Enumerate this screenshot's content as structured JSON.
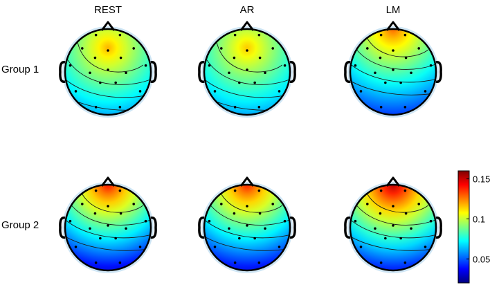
{
  "chart_data": {
    "type": "heatmap",
    "title": "",
    "columns": [
      "REST",
      "AR",
      "LM"
    ],
    "rows": [
      "Group 1",
      "Group 2"
    ],
    "colormap": "jet",
    "colorbar": {
      "range": [
        0.02,
        0.16
      ],
      "ticks": [
        0.05,
        0.1,
        0.15
      ],
      "tick_labels": [
        "0.05",
        "0.1",
        "0.15"
      ],
      "colors": [
        "#00007f",
        "#0000ff",
        "#007fff",
        "#00ffff",
        "#7fff7f",
        "#ffff00",
        "#ff7f00",
        "#ff0000",
        "#7f0000"
      ]
    },
    "panels": [
      {
        "row": "Group 1",
        "column": "REST",
        "peak_value": 0.118,
        "base_value": 0.045,
        "peak_location": "frontal-central"
      },
      {
        "row": "Group 1",
        "column": "AR",
        "peak_value": 0.115,
        "base_value": 0.045,
        "peak_location": "frontal-central"
      },
      {
        "row": "Group 1",
        "column": "LM",
        "peak_value": 0.128,
        "base_value": 0.042,
        "peak_location": "frontal"
      },
      {
        "row": "Group 2",
        "column": "REST",
        "peak_value": 0.14,
        "base_value": 0.03,
        "peak_location": "frontal"
      },
      {
        "row": "Group 2",
        "column": "AR",
        "peak_value": 0.138,
        "base_value": 0.032,
        "peak_location": "frontal"
      },
      {
        "row": "Group 2",
        "column": "LM",
        "peak_value": 0.152,
        "base_value": 0.035,
        "peak_location": "frontal"
      }
    ]
  }
}
